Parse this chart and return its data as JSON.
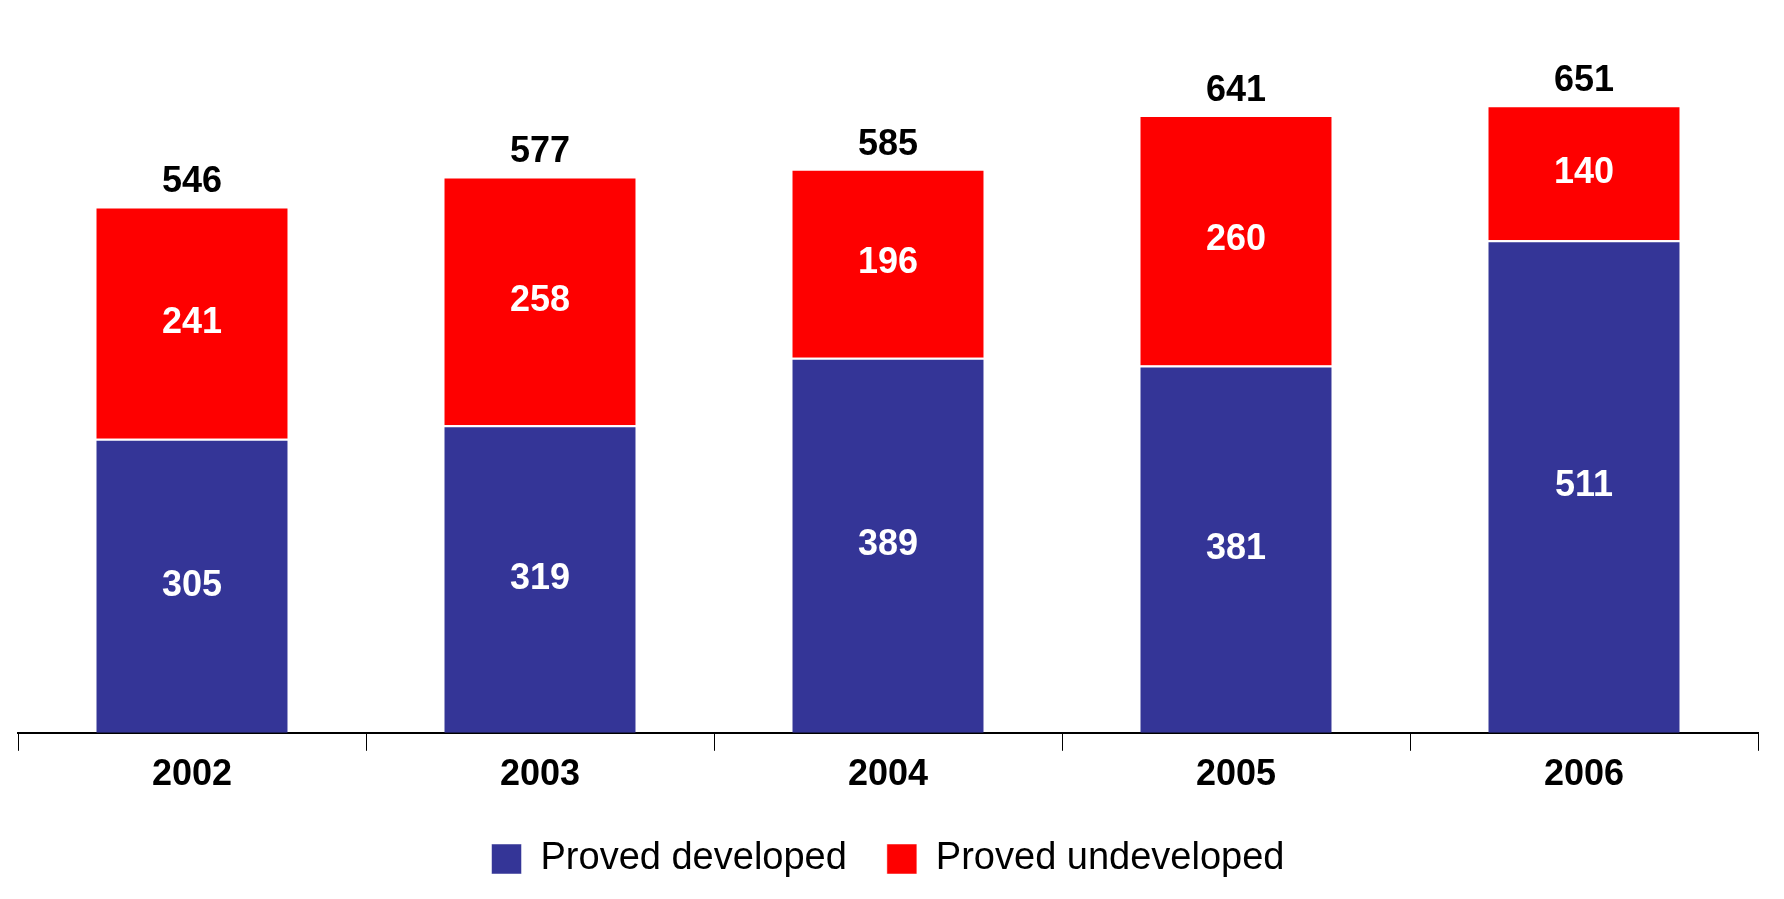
{
  "chart_data": {
    "type": "bar",
    "stacked": true,
    "data_labels": true,
    "legend": "bottom",
    "categories": [
      "2002",
      "2003",
      "2004",
      "2005",
      "2006"
    ],
    "series": [
      {
        "name": "Proved developed",
        "color": "#343597",
        "values": [
          305,
          319,
          389,
          381,
          511
        ]
      },
      {
        "name": "Proved undeveloped",
        "color": "#fe0000",
        "values": [
          241,
          258,
          196,
          260,
          140
        ]
      }
    ],
    "totals": [
      "546",
      "577",
      "585",
      "641",
      "651"
    ]
  }
}
